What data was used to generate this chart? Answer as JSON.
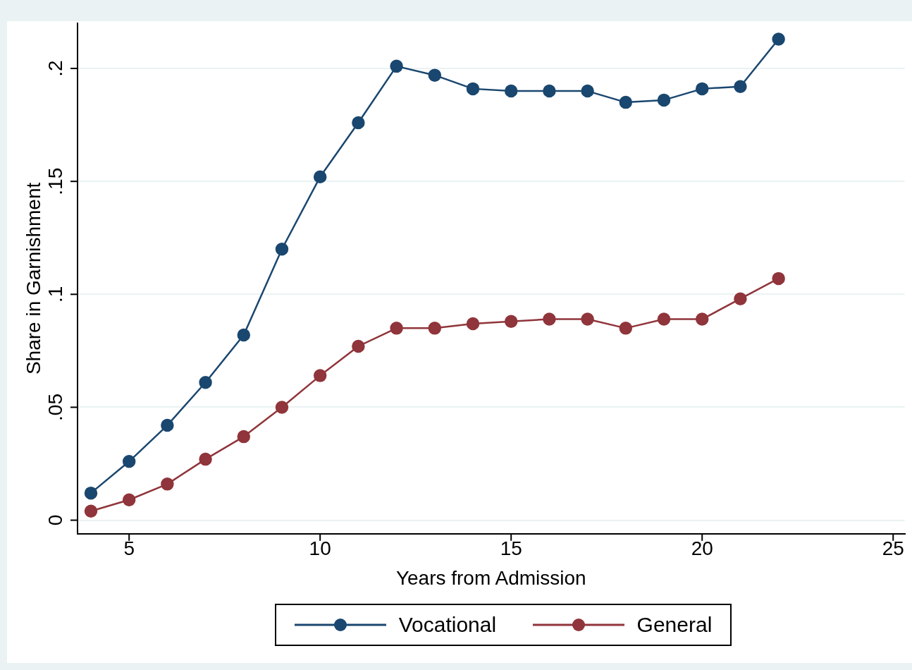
{
  "chart_data": {
    "type": "line",
    "xlabel": "Years from Admission",
    "ylabel": "Share in Garnishment",
    "x": [
      4,
      5,
      6,
      7,
      8,
      9,
      10,
      11,
      12,
      13,
      14,
      15,
      16,
      17,
      18,
      19,
      20,
      21,
      22
    ],
    "series": [
      {
        "name": "Vocational",
        "color": "#1a476f",
        "values": [
          0.012,
          0.026,
          0.042,
          0.061,
          0.082,
          0.12,
          0.152,
          0.176,
          0.201,
          0.197,
          0.191,
          0.19,
          0.19,
          0.19,
          0.185,
          0.186,
          0.191,
          0.192,
          0.213
        ]
      },
      {
        "name": "General",
        "color": "#90353b",
        "values": [
          0.004,
          0.009,
          0.016,
          0.027,
          0.037,
          0.05,
          0.064,
          0.077,
          0.085,
          0.085,
          0.087,
          0.088,
          0.089,
          0.089,
          0.085,
          0.089,
          0.089,
          0.098,
          0.107
        ]
      }
    ],
    "xlim": [
      3.65,
      25.3
    ],
    "xticks": [
      5,
      10,
      15,
      20,
      25
    ],
    "ylim": [
      -0.006,
      0.22
    ],
    "yticks": [
      {
        "value": 0,
        "label": "0"
      },
      {
        "value": 0.05,
        "label": ".05"
      },
      {
        "value": 0.1,
        "label": ".1"
      },
      {
        "value": 0.15,
        "label": ".15"
      },
      {
        "value": 0.2,
        "label": ".2"
      }
    ],
    "grid": "y",
    "legend": "bottom",
    "marker": "circle",
    "line_style": "solid"
  }
}
